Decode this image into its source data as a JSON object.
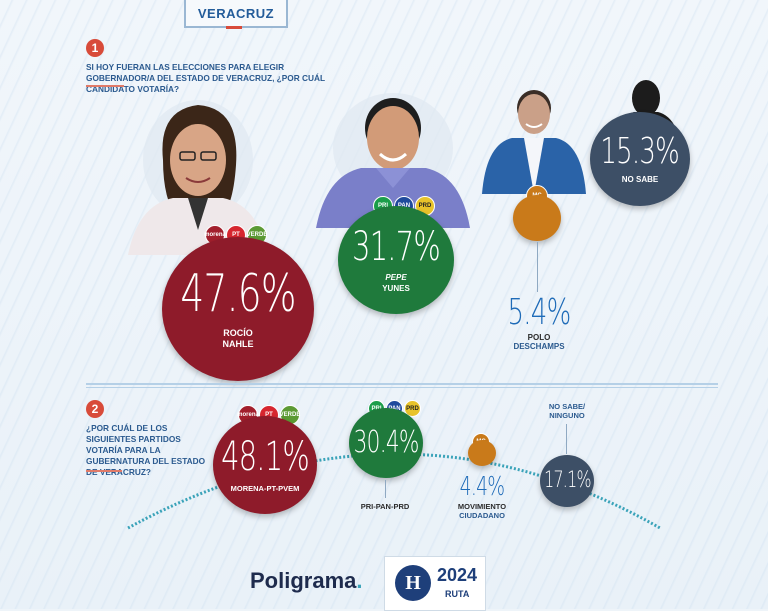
{
  "header": {
    "state": "VERACRUZ"
  },
  "q1": {
    "number": "1",
    "question": "SI HOY FUERAN LAS ELECCIONES PARA ELEGIR GOBERNADOR/A DEL ESTADO DE VERACRUZ, ¿POR CUÁL CANDIDATO VOTARÍA?"
  },
  "q2": {
    "number": "2",
    "question": "¿POR CUÁL DE LOS SIGUIENTES PARTIDOS VOTARÍA PARA LA GUBERNATURA DEL ESTADO DE VERACRUZ?"
  },
  "colors": {
    "morena": "#8e1b2a",
    "pri_pan_prd": "#1f7a3c",
    "mc": "#c97a1a",
    "no_sabe": "#3d4f66",
    "title_blue": "#2b5a8f",
    "accent_red": "#d84b3a"
  },
  "footer": {
    "brand": "Poligrama",
    "brand_dot": ".",
    "herald_letter": "H",
    "herald_year": "2024",
    "herald_tag": "RUTA"
  },
  "chart_data": [
    {
      "type": "bubble",
      "title": "",
      "categories": [
        "ROCÍO NAHLE",
        "PEPE YUNES",
        "POLO DESCHAMPS",
        "NO SABE"
      ],
      "values": [
        47.6,
        31.7,
        5.4,
        15.3
      ],
      "labels": [
        "47.6%",
        "31.7%",
        "5.4%",
        "15.3%"
      ],
      "name_lines": [
        [
          "ROCÍO",
          "NAHLE"
        ],
        [
          "PEPE",
          "YUNES"
        ],
        [
          "POLO",
          "DESCHAMPS"
        ],
        [
          "NO SABE"
        ]
      ]
    },
    {
      "type": "bubble",
      "title": "",
      "categories": [
        "MORENA-PT-PVEM",
        "PRI-PAN-PRD",
        "MOVIMIENTO CIUDADANO",
        "NO SABE/ NINGUNO"
      ],
      "values": [
        48.1,
        30.4,
        4.4,
        17.1
      ],
      "labels": [
        "48.1%",
        "30.4%",
        "4.4%",
        "17.1%"
      ],
      "name_lines": [
        [
          "MORENA-PT-PVEM"
        ],
        [
          "PRI-PAN-PRD"
        ],
        [
          "MOVIMIENTO",
          "CIUDADANO"
        ],
        [
          "NO SABE/",
          "NINGUNO"
        ]
      ]
    }
  ],
  "party_logos": {
    "morena": "morena",
    "pt": "PT",
    "pvem": "VERDE",
    "pri": "PRI",
    "pan": "PAN",
    "prd": "PRD",
    "mc": "MC"
  }
}
